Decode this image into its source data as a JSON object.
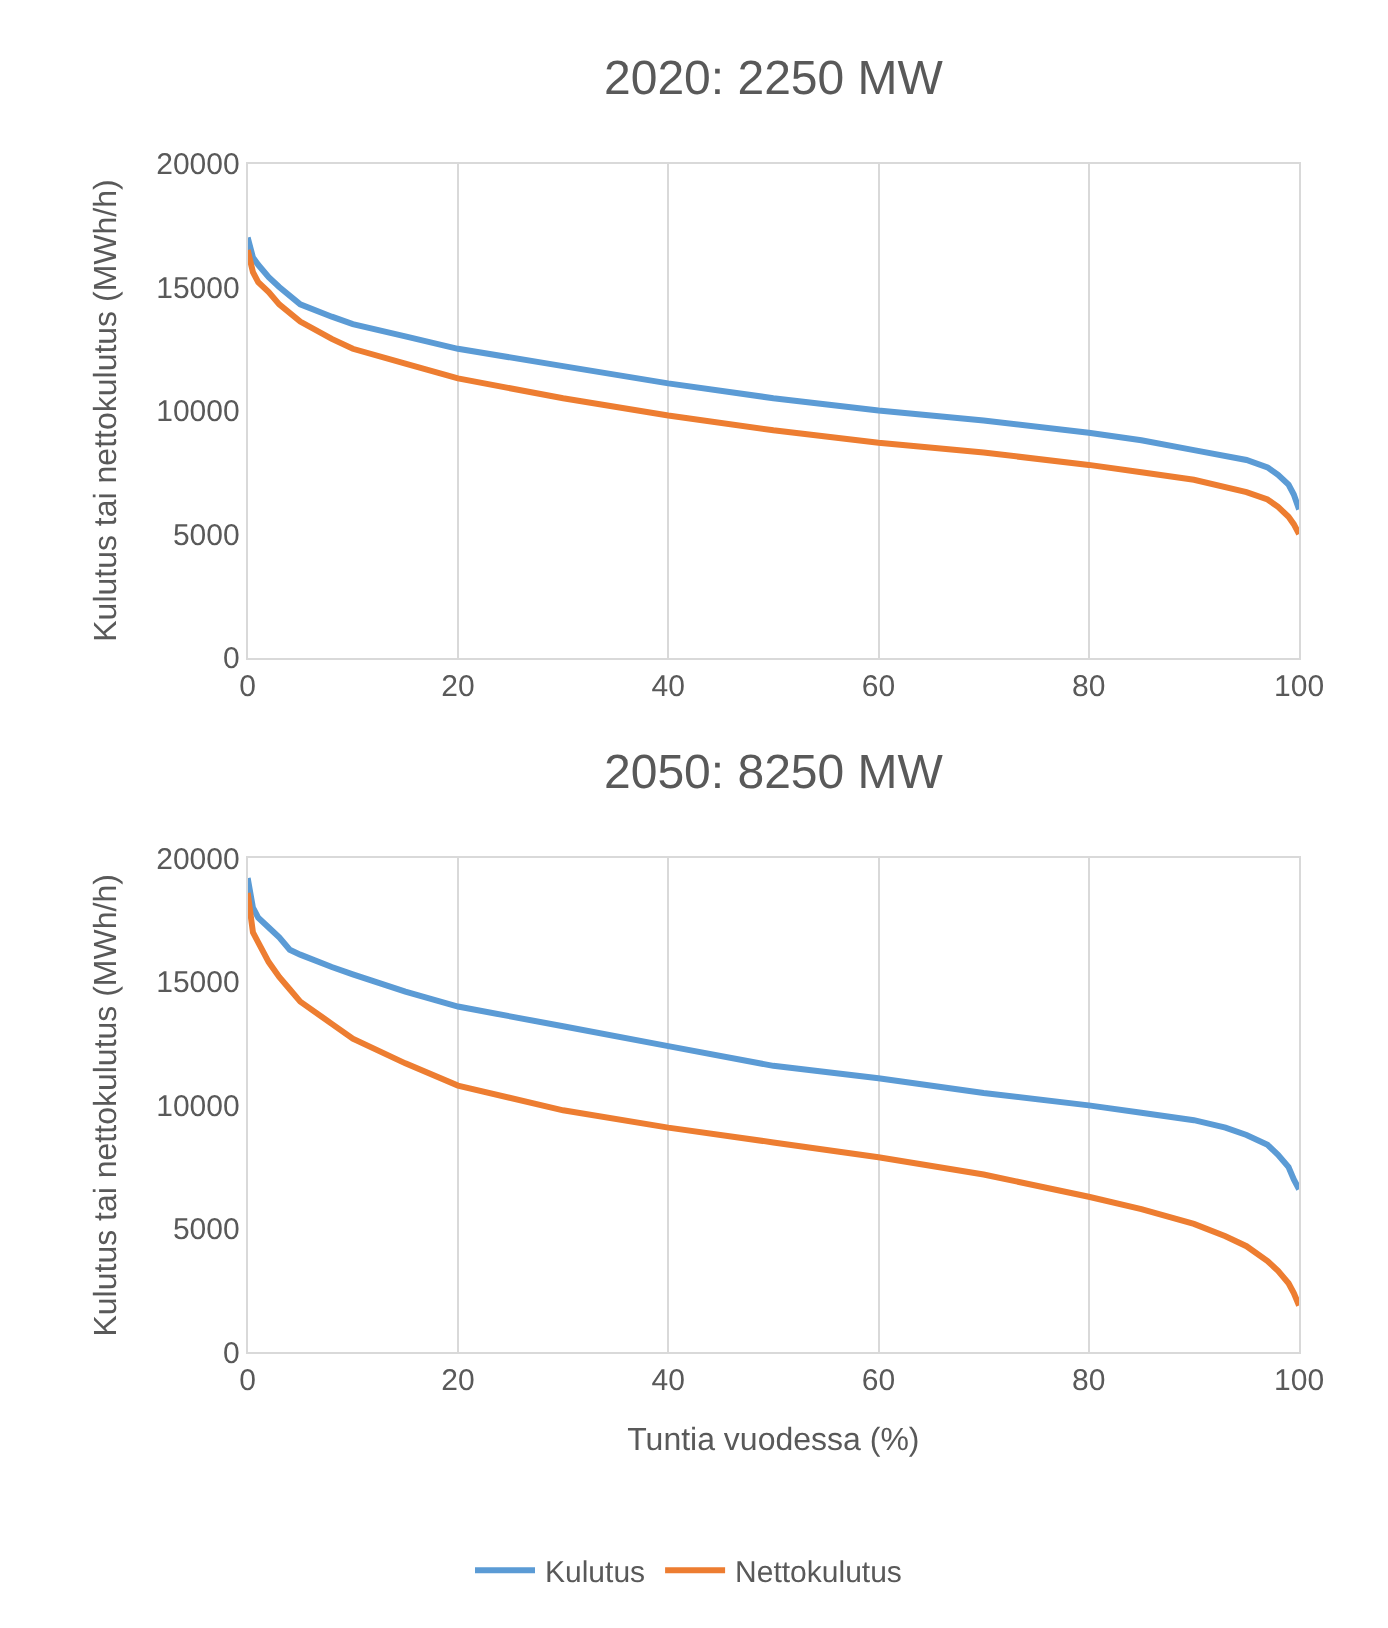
{
  "chart_data": [
    {
      "type": "line",
      "title": "2020: 2250 MW",
      "ylabel": "Kulutus tai nettokulutus (MWh/h)",
      "xlim": [
        0,
        100
      ],
      "xticks": [
        0,
        20,
        40,
        60,
        80,
        100
      ],
      "ylim": [
        0,
        20000
      ],
      "yticks": [
        0,
        5000,
        10000,
        15000,
        20000
      ],
      "grid": "x",
      "x": [
        0,
        0.5,
        1,
        2,
        3,
        5,
        8,
        10,
        15,
        20,
        30,
        40,
        50,
        60,
        70,
        80,
        85,
        90,
        95,
        97,
        98,
        99,
        99.5,
        100
      ],
      "series": [
        {
          "color": "#5b9bd5",
          "values": [
            17000,
            16200,
            15900,
            15400,
            15000,
            14300,
            13800,
            13500,
            13000,
            12500,
            11800,
            11100,
            10500,
            10000,
            9600,
            9100,
            8800,
            8400,
            8000,
            7700,
            7400,
            7000,
            6600,
            6000
          ]
        },
        {
          "color": "#ed7d31",
          "values": [
            16500,
            15600,
            15200,
            14800,
            14300,
            13600,
            12900,
            12500,
            11900,
            11300,
            10500,
            9800,
            9200,
            8700,
            8300,
            7800,
            7500,
            7200,
            6700,
            6400,
            6100,
            5700,
            5400,
            5000
          ]
        }
      ]
    },
    {
      "type": "line",
      "title": "2050: 8250 MW",
      "xlabel": "Tuntia vuodessa (%)",
      "ylabel": "Kulutus tai nettokulutus (MWh/h)",
      "xlim": [
        0,
        100
      ],
      "xticks": [
        0,
        20,
        40,
        60,
        80,
        100
      ],
      "ylim": [
        0,
        20000
      ],
      "yticks": [
        0,
        5000,
        10000,
        15000,
        20000
      ],
      "grid": "x",
      "legend": "bottom",
      "x": [
        0,
        0.5,
        1,
        2,
        3,
        4,
        5,
        8,
        10,
        15,
        20,
        30,
        40,
        50,
        60,
        70,
        80,
        85,
        90,
        93,
        95,
        97,
        98,
        99,
        99.5,
        100
      ],
      "series": [
        {
          "name": "Kulutus",
          "color": "#5b9bd5",
          "values": [
            19200,
            18000,
            17600,
            17200,
            16800,
            16300,
            16100,
            15600,
            15300,
            14600,
            14000,
            13200,
            12400,
            11600,
            11100,
            10500,
            10000,
            9700,
            9400,
            9100,
            8800,
            8400,
            8000,
            7500,
            7000,
            6600
          ]
        },
        {
          "name": "Nettokulutus",
          "color": "#ed7d31",
          "values": [
            18600,
            17000,
            16600,
            15800,
            15200,
            14700,
            14200,
            13300,
            12700,
            11700,
            10800,
            9800,
            9100,
            8500,
            7900,
            7200,
            6300,
            5800,
            5200,
            4700,
            4300,
            3700,
            3300,
            2800,
            2400,
            1900
          ]
        }
      ]
    }
  ]
}
